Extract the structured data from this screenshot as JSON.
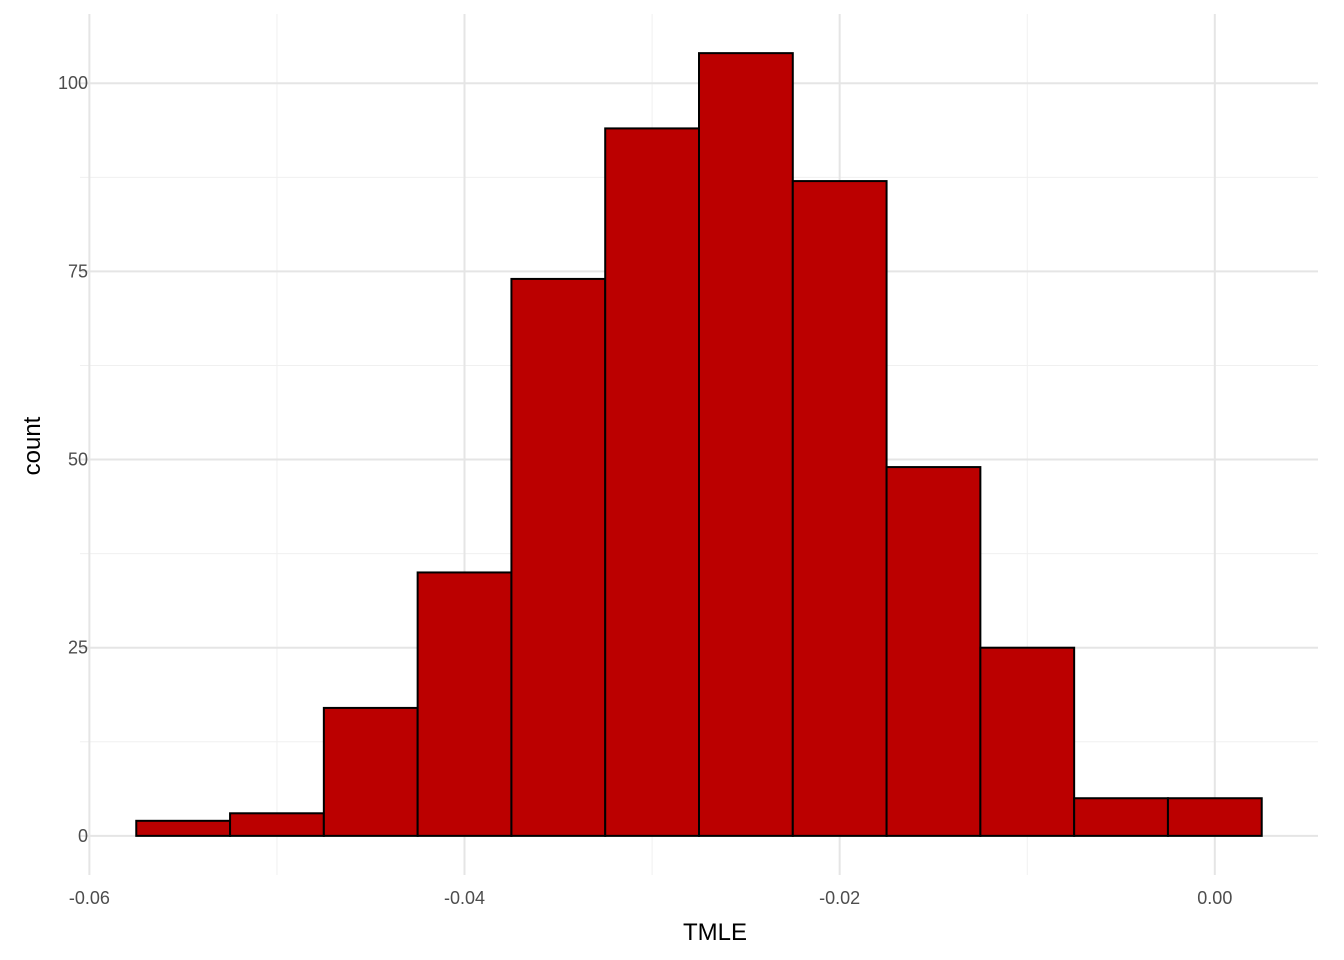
{
  "chart_data": {
    "type": "bar",
    "subtype": "histogram",
    "title": "",
    "xlabel": "TMLE",
    "ylabel": "count",
    "bin_width": 0.005,
    "bins": [
      {
        "x0": -0.0575,
        "x1": -0.0525,
        "count": 2
      },
      {
        "x0": -0.0525,
        "x1": -0.0475,
        "count": 3
      },
      {
        "x0": -0.0475,
        "x1": -0.0425,
        "count": 17
      },
      {
        "x0": -0.0425,
        "x1": -0.0375,
        "count": 35
      },
      {
        "x0": -0.0375,
        "x1": -0.0325,
        "count": 74
      },
      {
        "x0": -0.0325,
        "x1": -0.0275,
        "count": 94
      },
      {
        "x0": -0.0275,
        "x1": -0.0225,
        "count": 104
      },
      {
        "x0": -0.0225,
        "x1": -0.0175,
        "count": 87
      },
      {
        "x0": -0.0175,
        "x1": -0.0125,
        "count": 49
      },
      {
        "x0": -0.0125,
        "x1": -0.0075,
        "count": 25
      },
      {
        "x0": -0.0075,
        "x1": -0.0025,
        "count": 5
      },
      {
        "x0": -0.0025,
        "x1": 0.0025,
        "count": 5
      }
    ],
    "xlim": [
      -0.0605,
      0.0055
    ],
    "ylim": [
      -5.2,
      109.2
    ],
    "x_ticks": [
      {
        "value": -0.06,
        "label": "-0.06"
      },
      {
        "value": -0.04,
        "label": "-0.04"
      },
      {
        "value": -0.02,
        "label": "-0.02"
      },
      {
        "value": 0.0,
        "label": "0.00"
      }
    ],
    "x_minor_ticks": [
      -0.05,
      -0.03,
      -0.01
    ],
    "y_ticks": [
      {
        "value": 0,
        "label": "0"
      },
      {
        "value": 25,
        "label": "25"
      },
      {
        "value": 50,
        "label": "50"
      },
      {
        "value": 75,
        "label": "75"
      },
      {
        "value": 100,
        "label": "100"
      }
    ],
    "y_minor_ticks": [
      12.5,
      37.5,
      62.5,
      87.5
    ],
    "grid": true,
    "legend": "none",
    "colors": {
      "bar_fill": "#BB0000",
      "bar_stroke": "#000000",
      "grid_major": "#e5e5e5",
      "grid_minor": "#f0f0f0",
      "background": "#ffffff"
    }
  }
}
